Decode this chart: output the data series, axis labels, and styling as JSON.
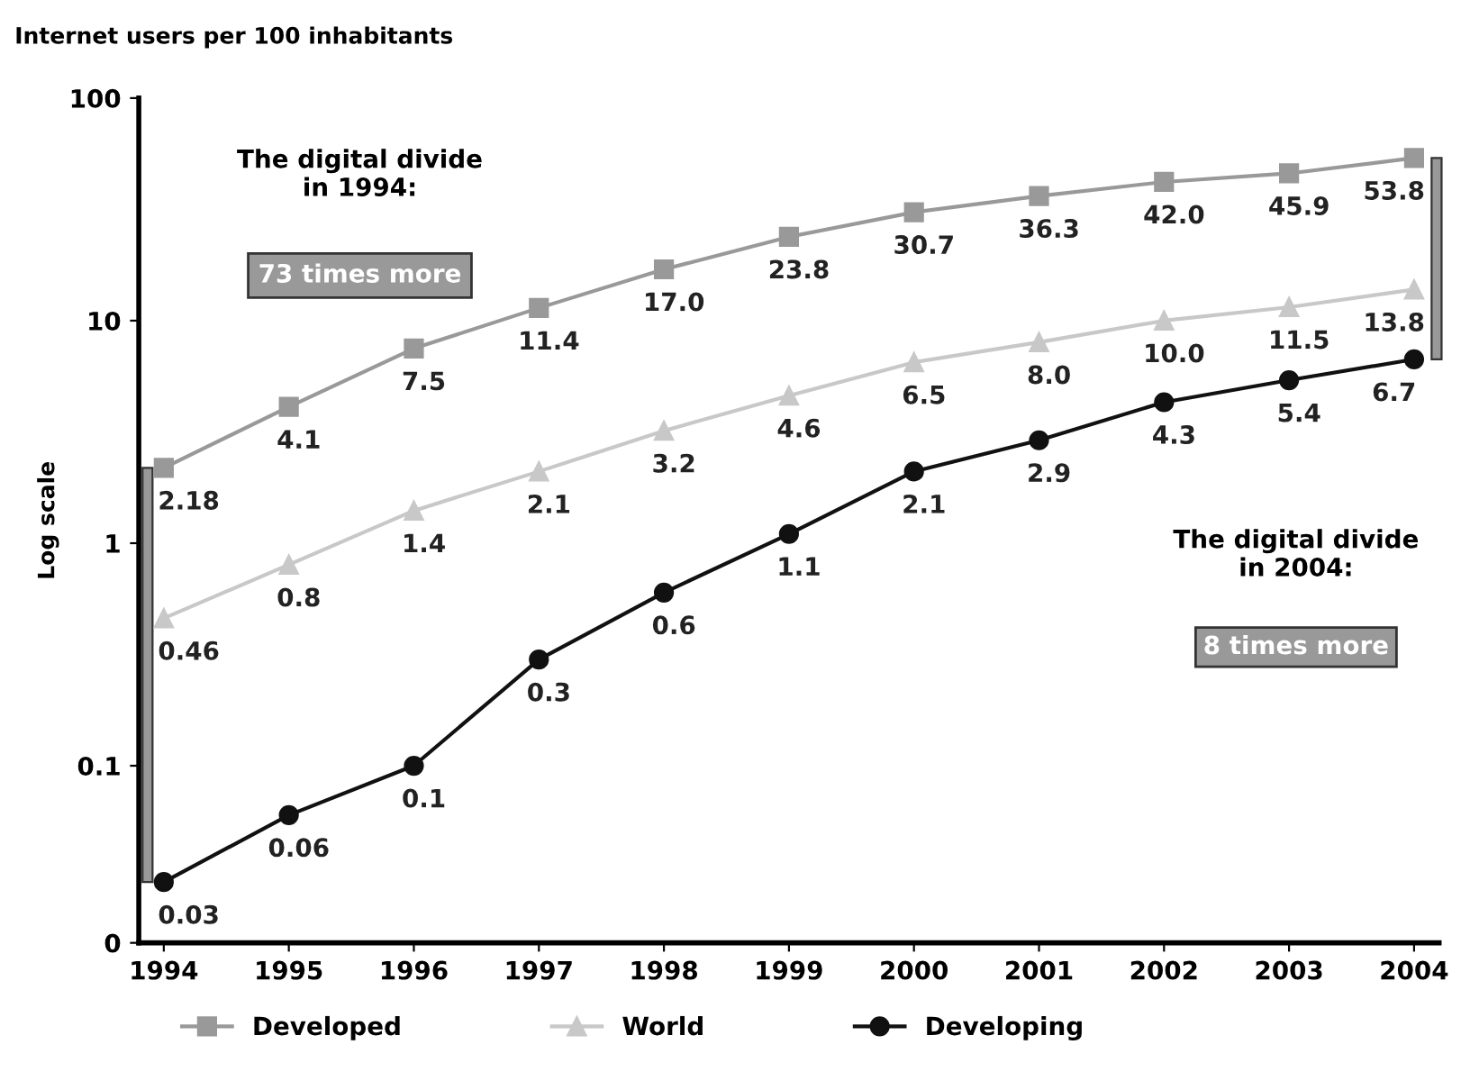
{
  "chart_data": {
    "type": "line",
    "title": "Internet users per 100 inhabitants",
    "ylabel": "Log scale",
    "log": true,
    "x": [
      1994,
      1995,
      1996,
      1997,
      1998,
      1999,
      2000,
      2001,
      2002,
      2003,
      2004
    ],
    "xlim": [
      1993.8,
      2004.2
    ],
    "xticks": [
      1994,
      1995,
      1996,
      1997,
      1998,
      1999,
      2000,
      2001,
      2002,
      2003,
      2004
    ],
    "ylim": [
      0.016,
      100
    ],
    "yticks": [
      {
        "value": 0.016,
        "label": "0"
      },
      0.1,
      1,
      10,
      100
    ],
    "grid": false,
    "legend": "bottom",
    "series": [
      {
        "name": "Developed",
        "color": "#999999",
        "marker": "square",
        "values": [
          2.18,
          4.1,
          7.5,
          11.4,
          17.0,
          23.8,
          30.7,
          36.3,
          42.0,
          45.9,
          53.8
        ],
        "value_labels": [
          "2.18",
          "4.1",
          "7.5",
          "11.4",
          "17.0",
          "23.8",
          "30.7",
          "36.3",
          "42.0",
          "45.9",
          "53.8"
        ]
      },
      {
        "name": "World",
        "color": "#c8c8c8",
        "marker": "triangle",
        "values": [
          0.46,
          0.8,
          1.4,
          2.1,
          3.2,
          4.6,
          6.5,
          8.0,
          10.0,
          11.5,
          13.8
        ],
        "value_labels": [
          "0.46",
          "0.8",
          "1.4",
          "2.1",
          "3.2",
          "4.6",
          "6.5",
          "8.0",
          "10.0",
          "11.5",
          "13.8"
        ]
      },
      {
        "name": "Developing",
        "color": "#111111",
        "marker": "circle",
        "values": [
          0.03,
          0.06,
          0.1,
          0.3,
          0.6,
          1.1,
          2.1,
          2.9,
          4.3,
          5.4,
          6.7
        ],
        "value_labels": [
          "0.03",
          "0.06",
          "0.1",
          "0.3",
          "0.6",
          "1.1",
          "2.1",
          "2.9",
          "4.3",
          "5.4",
          "6.7"
        ]
      }
    ],
    "annotations": [
      "The digital divide\nin 1994:",
      "73 times more",
      "The digital divide\nin 2004:",
      "8 times more"
    ]
  }
}
